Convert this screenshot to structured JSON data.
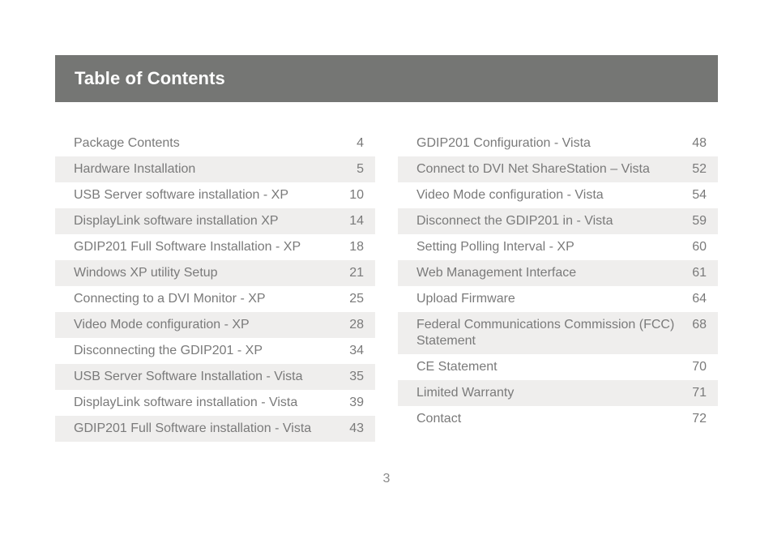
{
  "header": {
    "title": "Table of Contents"
  },
  "toc": {
    "left": [
      {
        "title": "Package Contents",
        "page": "4"
      },
      {
        "title": "Hardware Installation",
        "page": "5"
      },
      {
        "title": "USB Server software installation - XP",
        "page": "10"
      },
      {
        "title": "DisplayLink software installation XP",
        "page": "14"
      },
      {
        "title": "GDIP201 Full Software Installation - XP",
        "page": "18"
      },
      {
        "title": "Windows XP utility Setup",
        "page": "21"
      },
      {
        "title": "Connecting to a DVI Monitor - XP",
        "page": "25"
      },
      {
        "title": "Video Mode configuration - XP",
        "page": "28"
      },
      {
        "title": "Disconnecting the GDIP201 - XP",
        "page": "34"
      },
      {
        "title": "USB Server Software Installation - Vista",
        "page": "35"
      },
      {
        "title": "DisplayLink software installation - Vista",
        "page": "39"
      },
      {
        "title": "GDIP201 Full Software installation - Vista",
        "page": "43"
      }
    ],
    "right": [
      {
        "title": "GDIP201 Configuration - Vista",
        "page": "48"
      },
      {
        "title": "Connect to DVI Net ShareStation – Vista",
        "page": "52"
      },
      {
        "title": "Video Mode configuration - Vista",
        "page": "54"
      },
      {
        "title": "Disconnect the GDIP201 in - Vista",
        "page": "59"
      },
      {
        "title": "Setting Polling Interval - XP",
        "page": "60"
      },
      {
        "title": "Web Management Interface",
        "page": "61"
      },
      {
        "title": "Upload Firmware",
        "page": "64"
      },
      {
        "title": "Federal Communications Commission (FCC) Statement",
        "page": "68"
      },
      {
        "title": "CE Statement",
        "page": "70"
      },
      {
        "title": "Limited Warranty",
        "page": "71"
      },
      {
        "title": "Contact",
        "page": "72"
      }
    ]
  },
  "footer": {
    "page_number": "3"
  }
}
